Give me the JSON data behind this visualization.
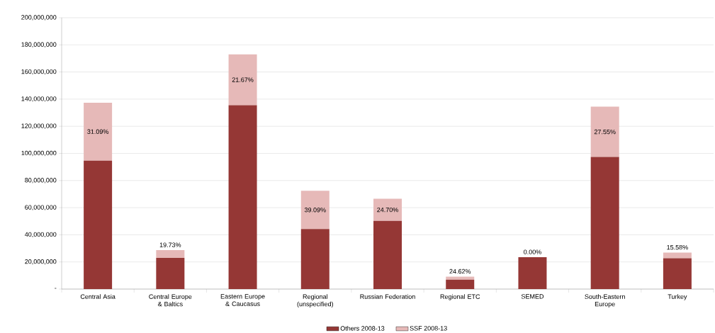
{
  "chart_data": {
    "type": "bar",
    "stacked": true,
    "categories": [
      "Central Asia",
      "Central Europe & Baltics",
      "Eastern Europe & Caucasus",
      "Regional (unspecified)",
      "Russian Federation",
      "Regional ETC",
      "SEMED",
      "South-Eastern Europe",
      "Turkey"
    ],
    "series": [
      {
        "name": "Others 2008-13",
        "color": "#953735",
        "values": [
          94700000,
          23000000,
          135500000,
          44200000,
          50200000,
          6900000,
          23500000,
          97400000,
          22700000
        ]
      },
      {
        "name": "SSF 2008-13",
        "color": "#e6b9b8",
        "values": [
          42700000,
          5700000,
          37500000,
          28300000,
          16400000,
          2300000,
          0,
          37000000,
          4200000
        ]
      }
    ],
    "annotations": [
      "31.09%",
      {
        "text": "19.73%",
        "x": "Central Europe & Baltics",
        "y": 28700000
      },
      "21.67%",
      {
        "text": "39.09%",
        "x": "Regional (unspecified)",
        "y": 72500000
      },
      {
        "text": "24.70%",
        "x": "Russian Federation",
        "y": 66600000
      },
      {
        "text": "24.62%",
        "x": "Regional ETC",
        "y": 9200000
      },
      {
        "text": "0.00%",
        "x": "SEMED",
        "y": 23500000
      },
      "27.55%",
      {
        "text": "15.58%",
        "x": "Turkey",
        "y": 26900000
      }
    ],
    "ylim": [
      0,
      200000000
    ],
    "yticks": [
      {
        "value": 0,
        "label": "-"
      },
      {
        "value": 20000000,
        "label": "20,000,000"
      },
      {
        "value": 40000000,
        "label": "40,000,000"
      },
      {
        "value": 60000000,
        "label": "60,000,000"
      },
      {
        "value": 80000000,
        "label": "80,000,000"
      },
      {
        "value": 100000000,
        "label": "100,000,000"
      },
      {
        "value": 120000000,
        "label": "120,000,000"
      },
      {
        "value": 140000000,
        "label": "140,000,000"
      },
      {
        "value": 160000000,
        "label": "160,000,000"
      },
      {
        "value": 180000000,
        "label": "180,000,000"
      },
      {
        "value": 200000000,
        "label": "200,000,000"
      }
    ],
    "grid": "y",
    "legend": "bottom"
  }
}
